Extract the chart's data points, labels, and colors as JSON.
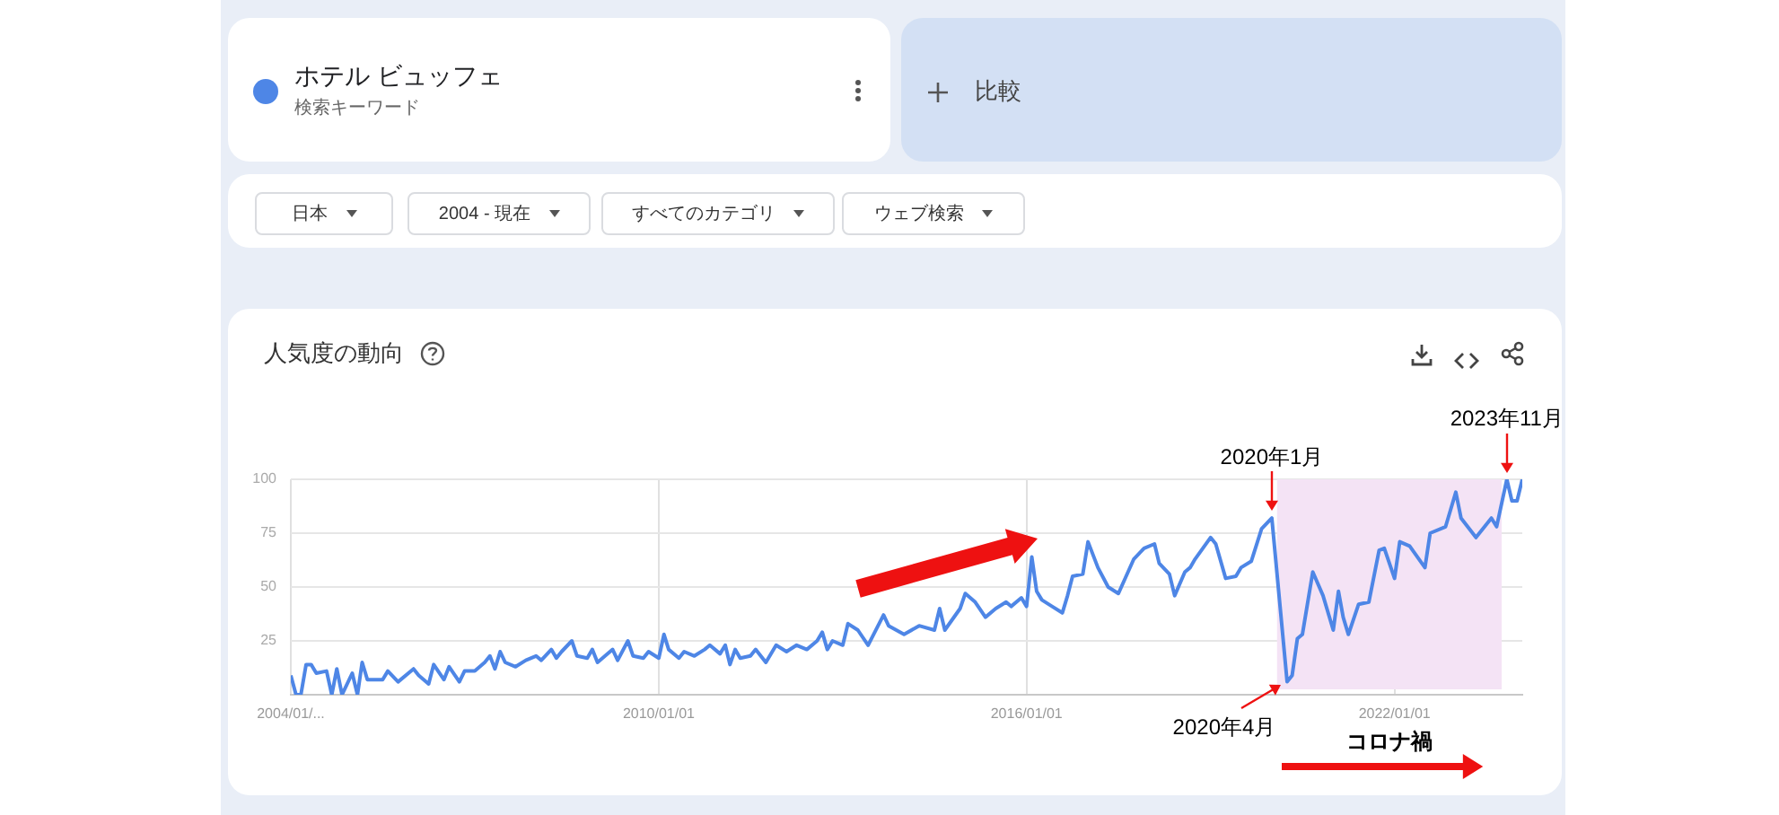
{
  "chart_data": {
    "type": "line",
    "title": "人気度の動向",
    "legend": "top left",
    "annotations": [
      "検索キーワード",
      "比較",
      "日本",
      "2004 - 現在",
      "すべてのカテゴリ",
      "ウェブ検索",
      {
        "text": "2020年1月",
        "x": "2020-01",
        "y": 82
      },
      {
        "text": "2020年4月",
        "x": "2020-04",
        "y": 6
      },
      {
        "text": "2023年11月",
        "x": "2023-11",
        "y": 100
      }
    ],
    "bands": [
      {
        "axis": "x",
        "from": "2020-02",
        "to": "2023-10",
        "label": "コロナ禍",
        "color": "#f4e3f5"
      }
    ],
    "xlim": [
      "2004-01",
      "2024-02"
    ],
    "xticks": [
      {
        "value": "2004-01",
        "label": "2004/01/..."
      },
      {
        "value": "2010-01",
        "label": "2010/01/01"
      },
      {
        "value": "2016-01",
        "label": "2016/01/01"
      },
      {
        "value": "2022-01",
        "label": "2022/01/01"
      }
    ],
    "ylim": [
      0,
      100
    ],
    "yticks": [
      25,
      50,
      75,
      100
    ],
    "grid": true,
    "series": [
      {
        "name": "ホテル ビュッフェ",
        "color": "#4e86e6",
        "x": [
          "2004-01",
          "2004-02",
          "2004-03",
          "2004-04",
          "2004-05",
          "2004-06",
          "2004-08",
          "2004-09",
          "2004-10",
          "2004-11",
          "2005-01",
          "2005-02",
          "2005-03",
          "2005-04",
          "2005-07",
          "2005-08",
          "2005-10",
          "2006-01",
          "2006-02",
          "2006-04",
          "2006-05",
          "2006-07",
          "2006-08",
          "2006-10",
          "2006-11",
          "2007-01",
          "2007-03",
          "2007-04",
          "2007-05",
          "2007-06",
          "2007-07",
          "2007-09",
          "2007-11",
          "2008-01",
          "2008-02",
          "2008-04",
          "2008-05",
          "2008-06",
          "2008-08",
          "2008-09",
          "2008-11",
          "2008-12",
          "2009-01",
          "2009-04",
          "2009-05",
          "2009-07",
          "2009-08",
          "2009-10",
          "2009-11",
          "2010-01",
          "2010-02",
          "2010-03",
          "2010-05",
          "2010-06",
          "2010-08",
          "2010-10",
          "2010-11",
          "2011-01",
          "2011-02",
          "2011-03",
          "2011-04",
          "2011-05",
          "2011-07",
          "2011-08",
          "2011-10",
          "2011-12",
          "2012-02",
          "2012-04",
          "2012-06",
          "2012-08",
          "2012-09",
          "2012-10",
          "2012-11",
          "2013-01",
          "2013-02",
          "2013-04",
          "2013-06",
          "2013-09",
          "2013-10",
          "2014-01",
          "2014-04",
          "2014-07",
          "2014-08",
          "2014-09",
          "2014-12",
          "2015-01",
          "2015-03",
          "2015-05",
          "2015-07",
          "2015-09",
          "2015-10",
          "2015-12",
          "2016-01",
          "2016-02",
          "2016-03",
          "2016-04",
          "2016-06",
          "2016-08",
          "2016-09",
          "2016-10",
          "2016-12",
          "2017-01",
          "2017-03",
          "2017-05",
          "2017-07",
          "2017-10",
          "2017-12",
          "2018-02",
          "2018-03",
          "2018-05",
          "2018-06",
          "2018-08",
          "2018-09",
          "2018-10",
          "2019-01",
          "2019-02",
          "2019-04",
          "2019-06",
          "2019-07",
          "2019-09",
          "2019-11",
          "2020-01",
          "2020-04",
          "2020-05",
          "2020-06",
          "2020-07",
          "2020-09",
          "2020-11",
          "2021-01",
          "2021-02",
          "2021-03",
          "2021-04",
          "2021-06",
          "2021-08",
          "2021-10",
          "2021-11",
          "2022-01",
          "2022-02",
          "2022-04",
          "2022-07",
          "2022-08",
          "2022-11",
          "2023-01",
          "2023-02",
          "2023-05",
          "2023-08",
          "2023-09",
          "2023-11",
          "2023-12",
          "2024-01",
          "2024-02"
        ],
        "values": [
          9,
          0,
          0,
          14,
          14,
          10,
          11,
          0,
          12,
          0,
          10,
          0,
          15,
          7,
          7,
          11,
          6,
          12,
          9,
          5,
          14,
          7,
          13,
          6,
          11,
          11,
          15,
          18,
          12,
          20,
          15,
          13,
          16,
          18,
          16,
          21,
          17,
          20,
          25,
          18,
          17,
          21,
          15,
          21,
          16,
          25,
          18,
          17,
          20,
          17,
          28,
          21,
          17,
          20,
          18,
          21,
          23,
          19,
          23,
          14,
          21,
          17,
          18,
          21,
          15,
          23,
          20,
          23,
          21,
          25,
          29,
          21,
          25,
          23,
          33,
          30,
          23,
          37,
          32,
          28,
          32,
          30,
          40,
          30,
          40,
          47,
          43,
          36,
          40,
          43,
          41,
          45,
          41,
          64,
          48,
          44,
          41,
          38,
          46,
          55,
          56,
          71,
          59,
          50,
          47,
          63,
          68,
          70,
          61,
          56,
          46,
          57,
          59,
          63,
          73,
          70,
          54,
          55,
          59,
          62,
          77,
          82,
          6,
          9,
          26,
          28,
          57,
          46,
          30,
          48,
          36,
          28,
          42,
          43,
          67,
          68,
          54,
          71,
          69,
          59,
          75,
          78,
          94,
          82,
          73,
          82,
          78,
          100,
          90,
          90,
          100
        ]
      }
    ]
  }
}
